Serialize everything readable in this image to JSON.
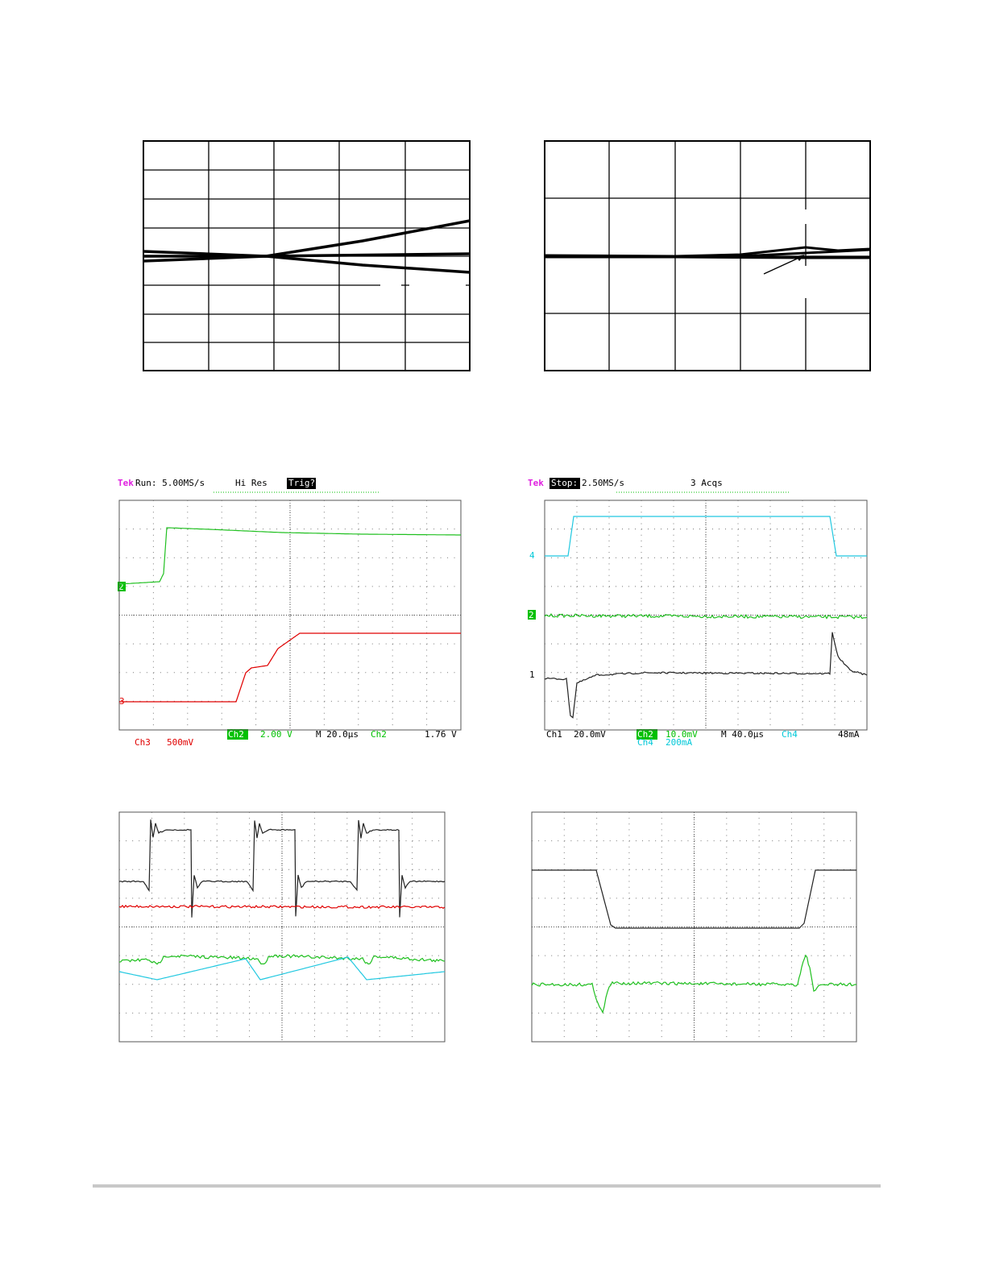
{
  "scopes": [
    {
      "header": {
        "brand": "Tek",
        "status": "Run: 5.00MS/s",
        "mode": "Hi Res",
        "trigger": "Trig?"
      },
      "footer": {
        "ch3": "Ch3",
        "ch3_scale": "500mV",
        "ch2": "Ch2",
        "ch2_scale": "2.00 V",
        "timebase": "M 20.0µs",
        "trig_source": "Ch2",
        "trig_level": "1.76 V"
      },
      "markers": [
        "2",
        "3"
      ]
    },
    {
      "header": {
        "brand": "Tek",
        "status": "Stop:",
        "rate": "2.50MS/s",
        "acqs": "3 Acqs"
      },
      "footer": {
        "ch1": "Ch1",
        "ch1_scale": "20.0mV",
        "ch2": "Ch2",
        "ch2_scale": "10.0mV",
        "timebase": "M 40.0µs",
        "trig_source": "Ch4",
        "trig_level": "48mA",
        "ch4": "Ch4",
        "ch4_scale": "200mA"
      },
      "markers": [
        "4",
        "2",
        "1"
      ]
    }
  ]
}
